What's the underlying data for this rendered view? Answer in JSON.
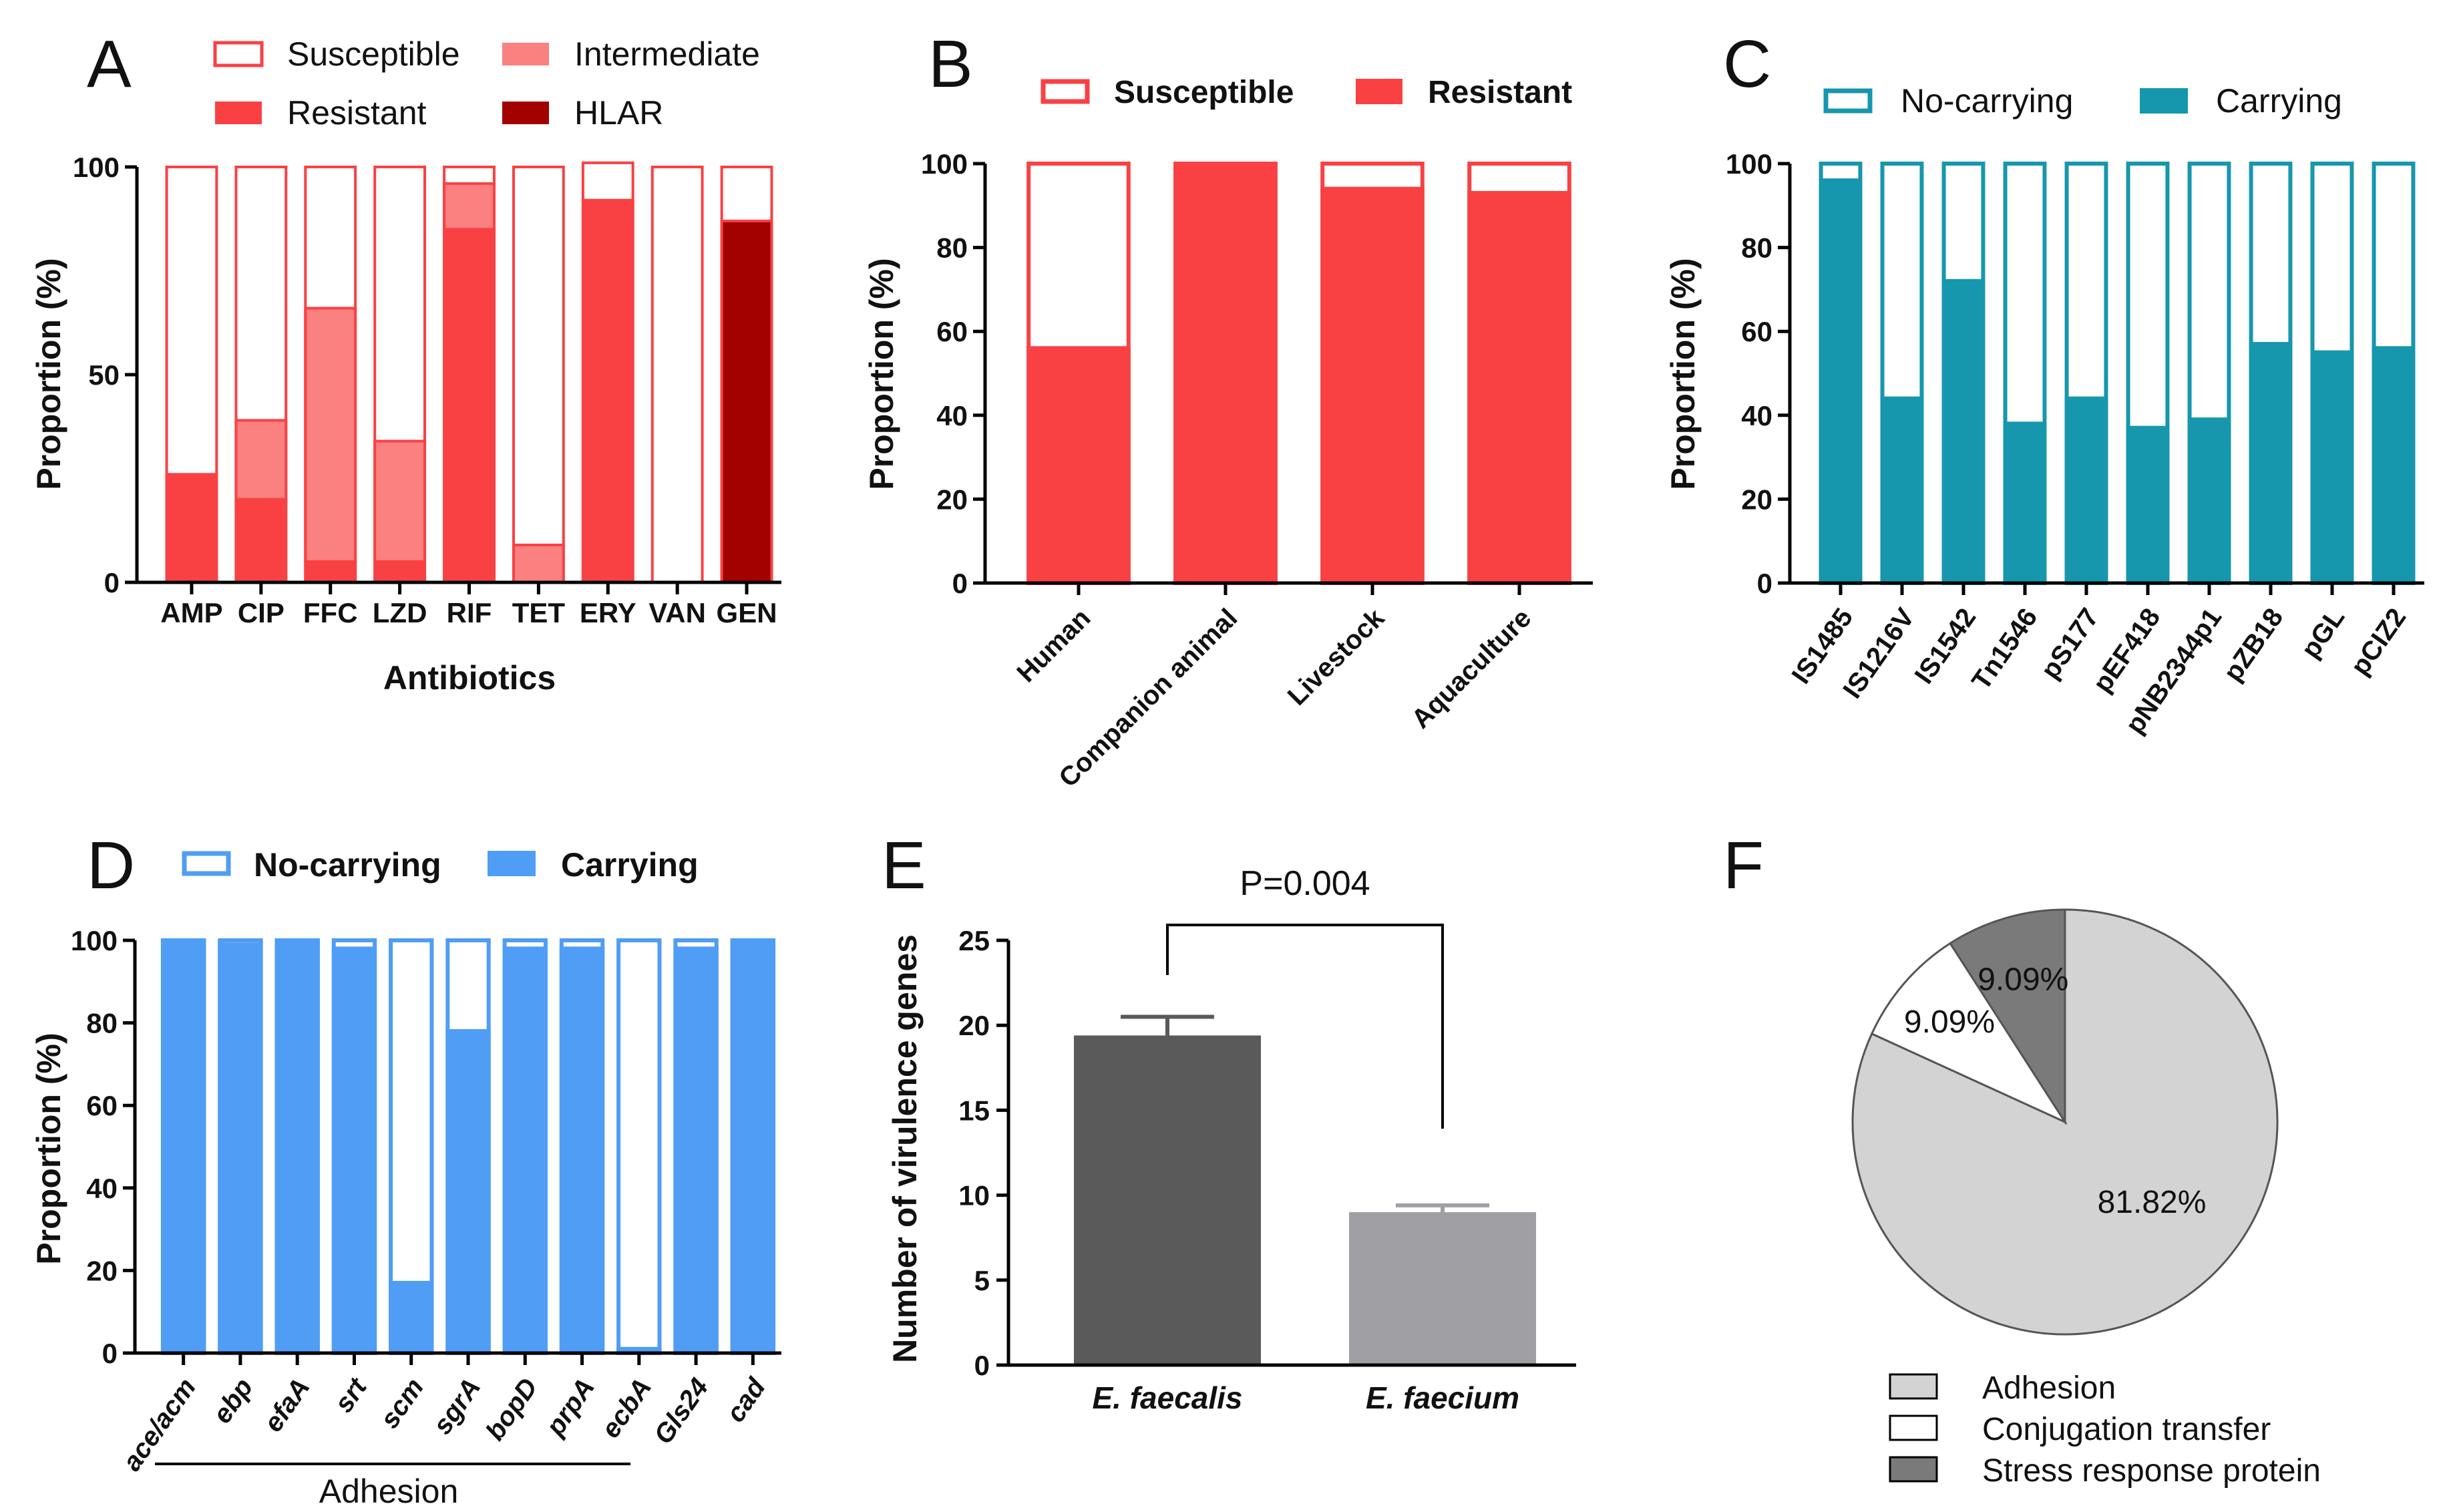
{
  "panel_letters": [
    "A",
    "B",
    "C",
    "D",
    "E",
    "F"
  ],
  "chart_data": [
    {
      "panel": "A",
      "type": "bar",
      "stacked": true,
      "title": "",
      "xlabel": "Antibiotics",
      "ylabel": "Proportion (%)",
      "ylim": [
        0,
        100
      ],
      "yticks": [
        "0",
        "50",
        "100"
      ],
      "legend_position": "top",
      "categories": [
        "AMP",
        "CIP",
        "FFC",
        "LZD",
        "RIF",
        "TET",
        "ERY",
        "VAN",
        "GEN"
      ],
      "series": [
        {
          "name": "Resistant",
          "color": "#f94144",
          "values": [
            26,
            20,
            5,
            5,
            85,
            0,
            92,
            0,
            0
          ]
        },
        {
          "name": "Intermediate",
          "color": "#fb8080",
          "values": [
            0,
            19,
            61,
            29,
            11,
            9,
            0,
            0,
            0
          ]
        },
        {
          "name": "HLAR",
          "color": "#a30000",
          "values": [
            0,
            0,
            0,
            0,
            0,
            0,
            0,
            0,
            87
          ]
        },
        {
          "name": "Susceptible",
          "color": "#ffffff",
          "values": [
            74,
            61,
            34,
            66,
            4,
            91,
            9,
            100,
            13
          ]
        }
      ],
      "legend": [
        "Susceptible",
        "Intermediate",
        "Resistant",
        "HLAR"
      ]
    },
    {
      "panel": "B",
      "type": "bar",
      "stacked": true,
      "xlabel": "",
      "ylabel": "Proportion (%)",
      "ylim": [
        0,
        100
      ],
      "yticks": [
        "0",
        "20",
        "40",
        "60",
        "80",
        "100"
      ],
      "legend_position": "top",
      "categories": [
        "Human",
        "Companion animal",
        "Livestock",
        "Aquaculture"
      ],
      "series": [
        {
          "name": "Resistant",
          "color": "#f94144",
          "values": [
            56,
            100,
            94,
            93
          ]
        },
        {
          "name": "Susceptible",
          "color": "#ffffff",
          "values": [
            44,
            0,
            6,
            7
          ]
        }
      ],
      "legend": [
        "Susceptible",
        "Resistant"
      ]
    },
    {
      "panel": "C",
      "type": "bar",
      "stacked": true,
      "xlabel": "",
      "ylabel": "Proportion (%)",
      "ylim": [
        0,
        100
      ],
      "yticks": [
        "0",
        "20",
        "40",
        "60",
        "80",
        "100"
      ],
      "legend_position": "top",
      "categories": [
        "IS1485",
        "IS1216V",
        "IS1542",
        "Tn1546",
        "pS177",
        "pEF418",
        "pNB2344p1",
        "pZB18",
        "pGL",
        "pCIZ2"
      ],
      "series": [
        {
          "name": "Carrying",
          "color": "#1697ad",
          "values": [
            96,
            44,
            72,
            38,
            44,
            37,
            39,
            57,
            55,
            56
          ]
        },
        {
          "name": "No-carrying",
          "color": "#ffffff",
          "values": [
            4,
            56,
            28,
            62,
            56,
            63,
            61,
            43,
            45,
            44
          ]
        }
      ],
      "legend": [
        "No-carrying",
        "Carrying"
      ]
    },
    {
      "panel": "D",
      "type": "bar",
      "stacked": true,
      "xlabel": "Adhesion",
      "ylabel": "Proportion (%)",
      "ylim": [
        0,
        100
      ],
      "yticks": [
        "0",
        "20",
        "40",
        "60",
        "80",
        "100"
      ],
      "legend_position": "top",
      "categories": [
        "ace/acm",
        "ebp",
        "efaA",
        "srt",
        "scm",
        "sgrA",
        "bopD",
        "prpA",
        "ecbA",
        "Gls24",
        "cad"
      ],
      "series": [
        {
          "name": "Carrying",
          "color": "#4f9df5",
          "values": [
            100,
            99,
            100,
            98,
            17,
            78,
            98,
            98,
            1,
            98,
            100
          ]
        },
        {
          "name": "No-carrying",
          "color": "#ffffff",
          "values": [
            0,
            1,
            0,
            2,
            83,
            22,
            2,
            2,
            99,
            2,
            0
          ]
        }
      ],
      "legend": [
        "No-carrying",
        "Carrying"
      ]
    },
    {
      "panel": "E",
      "type": "bar",
      "xlabel": "",
      "ylabel": "Number of virulence genes",
      "ylim": [
        0,
        25
      ],
      "yticks": [
        "0",
        "5",
        "10",
        "15",
        "20",
        "25"
      ],
      "categories": [
        "E. faecalis",
        "E. faecium"
      ],
      "values": [
        19.4,
        9.0
      ],
      "errors": [
        1.1,
        0.4
      ],
      "colors": [
        "#5a5a5a",
        "#a0a0a4"
      ],
      "annotation": "P=0.004"
    },
    {
      "panel": "F",
      "type": "pie",
      "labels": [
        "Adhesion",
        "Conjugation transfer",
        "Stress response protein"
      ],
      "values": [
        81.82,
        9.09,
        9.09
      ],
      "value_labels": [
        "81.82%",
        "9.09%",
        "9.09%"
      ],
      "colors": [
        "#d3d3d3",
        "#ffffff",
        "#7a7a7a"
      ],
      "legend_position": "bottom"
    }
  ]
}
